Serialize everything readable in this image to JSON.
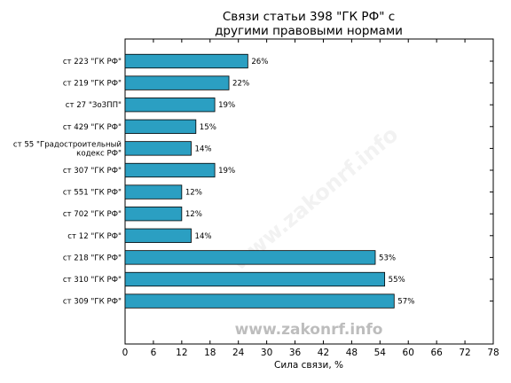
{
  "chart_data": {
    "type": "bar",
    "orientation": "horizontal",
    "title": [
      "Связи статьи 398 \"ГК РФ\" с",
      "другими правовыми нормами"
    ],
    "xlabel": "Сила связи, %",
    "ylabel": "",
    "xlim": [
      0,
      78
    ],
    "xticks": [
      0,
      6,
      12,
      18,
      24,
      30,
      36,
      42,
      48,
      54,
      60,
      66,
      72,
      78
    ],
    "bar_color": "#2b9fc2",
    "categories": [
      [
        "ст 223 \"ГК РФ\""
      ],
      [
        "ст 219 \"ГК РФ\""
      ],
      [
        "ст 27 \"ЗоЗПП\""
      ],
      [
        "ст 429 \"ГК РФ\""
      ],
      [
        "ст 55 \"Градостроительный",
        "кодекс РФ\""
      ],
      [
        "ст 307 \"ГК РФ\""
      ],
      [
        "ст 551 \"ГК РФ\""
      ],
      [
        "ст 702 \"ГК РФ\""
      ],
      [
        "ст 12 \"ГК РФ\""
      ],
      [
        "ст 218 \"ГК РФ\""
      ],
      [
        "ст 310 \"ГК РФ\""
      ],
      [
        "ст 309 \"ГК РФ\""
      ]
    ],
    "values": [
      26,
      22,
      19,
      15,
      14,
      19,
      12,
      12,
      14,
      53,
      55,
      57
    ],
    "value_labels": [
      "26%",
      "22%",
      "19%",
      "15%",
      "14%",
      "19%",
      "12%",
      "12%",
      "14%",
      "53%",
      "55%",
      "57%"
    ],
    "watermark": "www.zakonrf.info"
  }
}
